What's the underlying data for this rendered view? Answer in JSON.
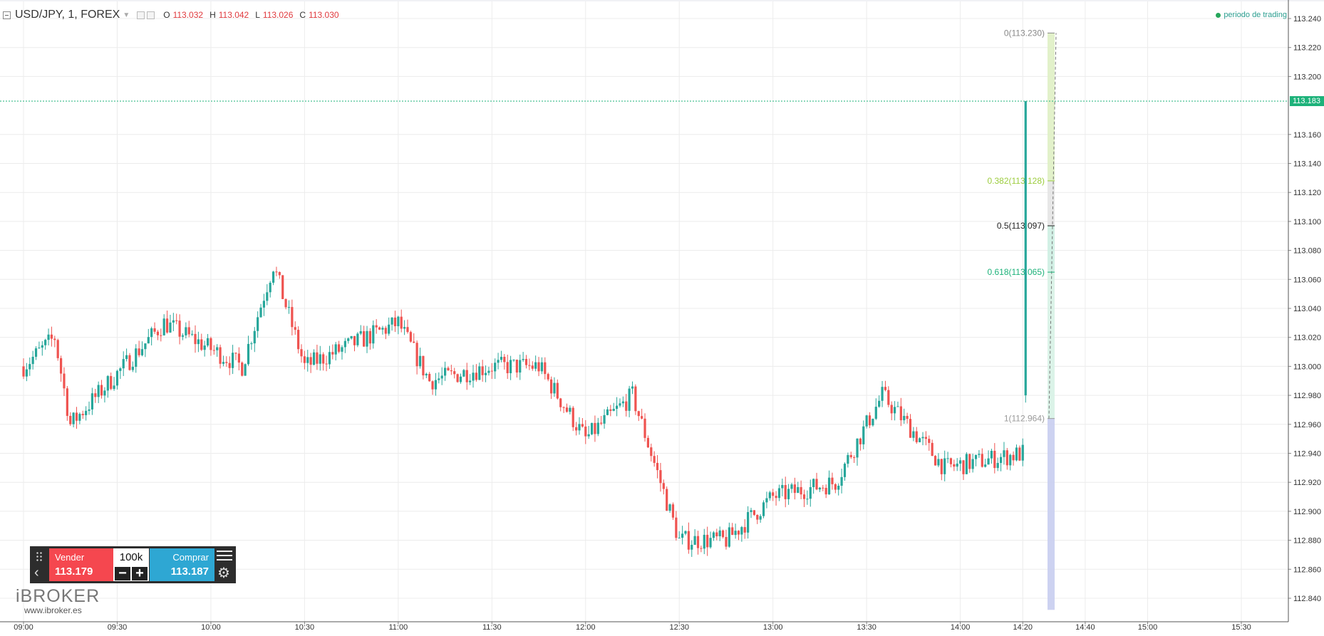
{
  "header": {
    "symbol": "USD/JPY, 1, FOREX",
    "open_label": "O",
    "open": "113.032",
    "high_label": "H",
    "high": "113.042",
    "low_label": "L",
    "low": "113.026",
    "close_label": "C",
    "close": "113.030"
  },
  "session_status": "periodo de trading",
  "current_price_tag": "113.183",
  "colors": {
    "up": "#26a69a",
    "down": "#ef5350",
    "price_line": "#1db27a",
    "sell": "#f5474f",
    "buy": "#2ea7d3"
  },
  "price_axis": {
    "labels": [
      "113.240",
      "113.220",
      "113.200",
      "113.160",
      "113.140",
      "113.120",
      "113.100",
      "113.080",
      "113.060",
      "113.040",
      "113.020",
      "113.000",
      "112.980",
      "112.960",
      "112.940",
      "112.920",
      "112.900",
      "112.880",
      "112.860",
      "112.840"
    ]
  },
  "time_axis": {
    "labels": [
      "09:00",
      "09:30",
      "10:00",
      "10:30",
      "11:00",
      "11:30",
      "12:00",
      "12:30",
      "13:00",
      "13:30",
      "14:00",
      "14:20",
      "14:40",
      "15:00",
      "15:30"
    ]
  },
  "fibonacci": {
    "levels": [
      {
        "label": "0(113.230)",
        "price": 113.23,
        "color": "#888888"
      },
      {
        "label": "0.382(113.128)",
        "price": 113.128,
        "color": "#9ccc3d"
      },
      {
        "label": "0.5(113.097)",
        "price": 113.097,
        "color": "#222222"
      },
      {
        "label": "0.618(113.065)",
        "price": 113.065,
        "color": "#1db27a"
      },
      {
        "label": "1(112.964)",
        "price": 112.964,
        "color": "#999999"
      }
    ]
  },
  "trade_panel": {
    "sell_label": "Vender",
    "sell_price": "113.179",
    "quantity": "100k",
    "buy_label": "Comprar",
    "buy_price": "113.187",
    "minus": "−",
    "plus": "+"
  },
  "branding": {
    "logo_text": "iBROKER",
    "url": "www.ibroker.es"
  },
  "chart_data": {
    "type": "candlestick",
    "symbol": "USD/JPY",
    "interval": "1",
    "ylim": [
      112.83,
      113.245
    ],
    "last_price": 113.183,
    "keypoints": [
      {
        "time": "09:00",
        "price": 113.0
      },
      {
        "time": "09:10",
        "price": 113.02
      },
      {
        "time": "09:15",
        "price": 112.96
      },
      {
        "time": "09:45",
        "price": 113.03
      },
      {
        "time": "10:10",
        "price": 113.0
      },
      {
        "time": "10:20",
        "price": 113.07
      },
      {
        "time": "10:30",
        "price": 113.0
      },
      {
        "time": "11:00",
        "price": 113.03
      },
      {
        "time": "11:10",
        "price": 112.99
      },
      {
        "time": "11:30",
        "price": 113.0
      },
      {
        "time": "11:45",
        "price": 113.0
      },
      {
        "time": "12:00",
        "price": 112.95
      },
      {
        "time": "12:15",
        "price": 112.98
      },
      {
        "time": "12:30",
        "price": 112.88
      },
      {
        "time": "12:45",
        "price": 112.88
      },
      {
        "time": "13:00",
        "price": 112.91
      },
      {
        "time": "13:20",
        "price": 112.92
      },
      {
        "time": "13:35",
        "price": 112.98
      },
      {
        "time": "13:55",
        "price": 112.93
      },
      {
        "time": "14:20",
        "price": 112.94
      },
      {
        "time": "14:25",
        "price": 113.183
      }
    ]
  }
}
